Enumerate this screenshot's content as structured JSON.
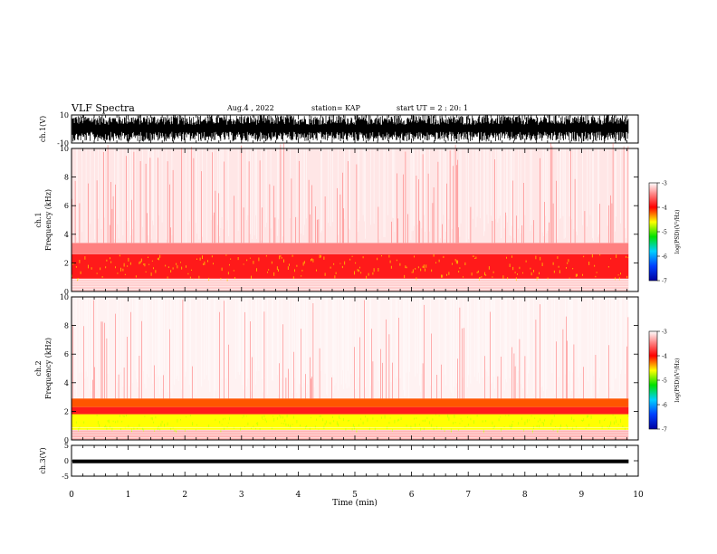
{
  "header": {
    "title": "VLF Spectra",
    "date": "Aug.4 , 2022",
    "station": "station= KAP",
    "start": "start UT = 2 : 20: 1"
  },
  "chart_data": [
    {
      "type": "line",
      "panel": "ch1-waveform",
      "ylabel": "ch.1(V)",
      "ylim": [
        -10,
        10
      ],
      "yticks": [
        "10",
        "-10"
      ],
      "xlim": [
        0,
        10
      ],
      "color": "#000000",
      "data_extent_x": [
        0,
        9.83
      ],
      "note": "dense waveform mostly within -5..10 V"
    },
    {
      "type": "heatmap",
      "panel": "ch1-spectrogram",
      "ylabel": "ch.1\nFrequency (kHz)",
      "ylim": [
        0,
        10
      ],
      "yticks": [
        "0",
        "2",
        "4",
        "6",
        "8",
        "10"
      ],
      "xlim": [
        0,
        9.83
      ],
      "colorbar": {
        "label": "log(PSD)(V²/Hz)",
        "range": [
          -7,
          -3
        ],
        "ticks": [
          "-3",
          "-4",
          "-5",
          "-6",
          "-7"
        ]
      },
      "bands_khz": [
        {
          "from": 0.0,
          "to": 0.9,
          "level": -3.2
        },
        {
          "from": 0.9,
          "to": 2.6,
          "level": -3.9
        },
        {
          "from": 2.6,
          "to": 3.4,
          "level": -3.5
        },
        {
          "from": 3.4,
          "to": 10.0,
          "level": -3.1
        }
      ]
    },
    {
      "type": "heatmap",
      "panel": "ch2-spectrogram",
      "ylabel": "ch.2\nFrequency (kHz)",
      "ylim": [
        0,
        10
      ],
      "yticks": [
        "0",
        "2",
        "4",
        "6",
        "8",
        "10"
      ],
      "xlim": [
        0,
        9.83
      ],
      "colorbar": {
        "label": "log(PSD)(V²/Hz)",
        "range": [
          -7,
          -3
        ],
        "ticks": [
          "-3",
          "-4",
          "-5",
          "-6",
          "-7"
        ]
      },
      "bands_khz": [
        {
          "from": 0.0,
          "to": 0.7,
          "level": -3.3
        },
        {
          "from": 0.7,
          "to": 1.8,
          "level": -4.6
        },
        {
          "from": 1.8,
          "to": 2.3,
          "level": -3.9
        },
        {
          "from": 2.3,
          "to": 2.9,
          "level": -4.2
        },
        {
          "from": 2.9,
          "to": 10.0,
          "level": -3.05
        }
      ]
    },
    {
      "type": "line",
      "panel": "ch3-waveform",
      "ylabel": "ch.3(V)",
      "ylim": [
        -5,
        5
      ],
      "yticks": [
        "5",
        "0",
        "-5"
      ],
      "xlim": [
        0,
        10
      ],
      "color": "#000000",
      "data_extent_x": [
        0,
        9.83
      ],
      "band_v": [
        -0.8,
        0.4
      ]
    }
  ],
  "xaxis": {
    "label": "Time (min)",
    "ticks": [
      "0",
      "1",
      "2",
      "3",
      "4",
      "5",
      "6",
      "7",
      "8",
      "9",
      "10"
    ]
  }
}
